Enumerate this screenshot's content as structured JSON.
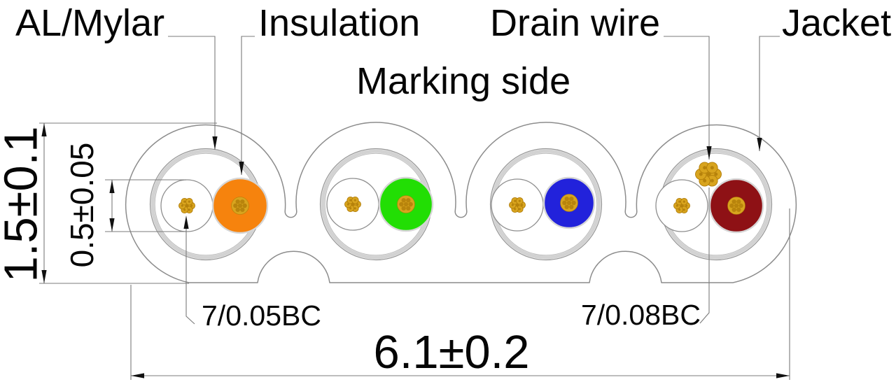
{
  "diagram": {
    "kind": "flat shielded cable cross-section",
    "callouts": {
      "al_mylar": "AL/Mylar",
      "insulation": "Insulation",
      "drain_wire": "Drain wire",
      "jacket": "Jacket"
    },
    "marking_label": "Marking side",
    "dimensions": {
      "overall_height": "1.5±0.1",
      "drain_cell_diameter": "0.5±0.05",
      "overall_width": "6.1±0.2"
    },
    "conductor_specs": {
      "small_conductor": "7/0.05BC",
      "drain_conductor": "7/0.08BC"
    },
    "colors": {
      "insulation_by_core": [
        "#F6830D",
        "#22DE04",
        "#2222DB",
        "#8E1115"
      ],
      "copper": "#D8A41E",
      "copper_dark": "#B07C08",
      "jacket_fill": "#FFFFFF",
      "outline_gray": "#8C8C8C",
      "foil_gray": "#D2D2D2",
      "annotation_gray": "#7B7B7B",
      "arrow_black": "#111111"
    }
  }
}
